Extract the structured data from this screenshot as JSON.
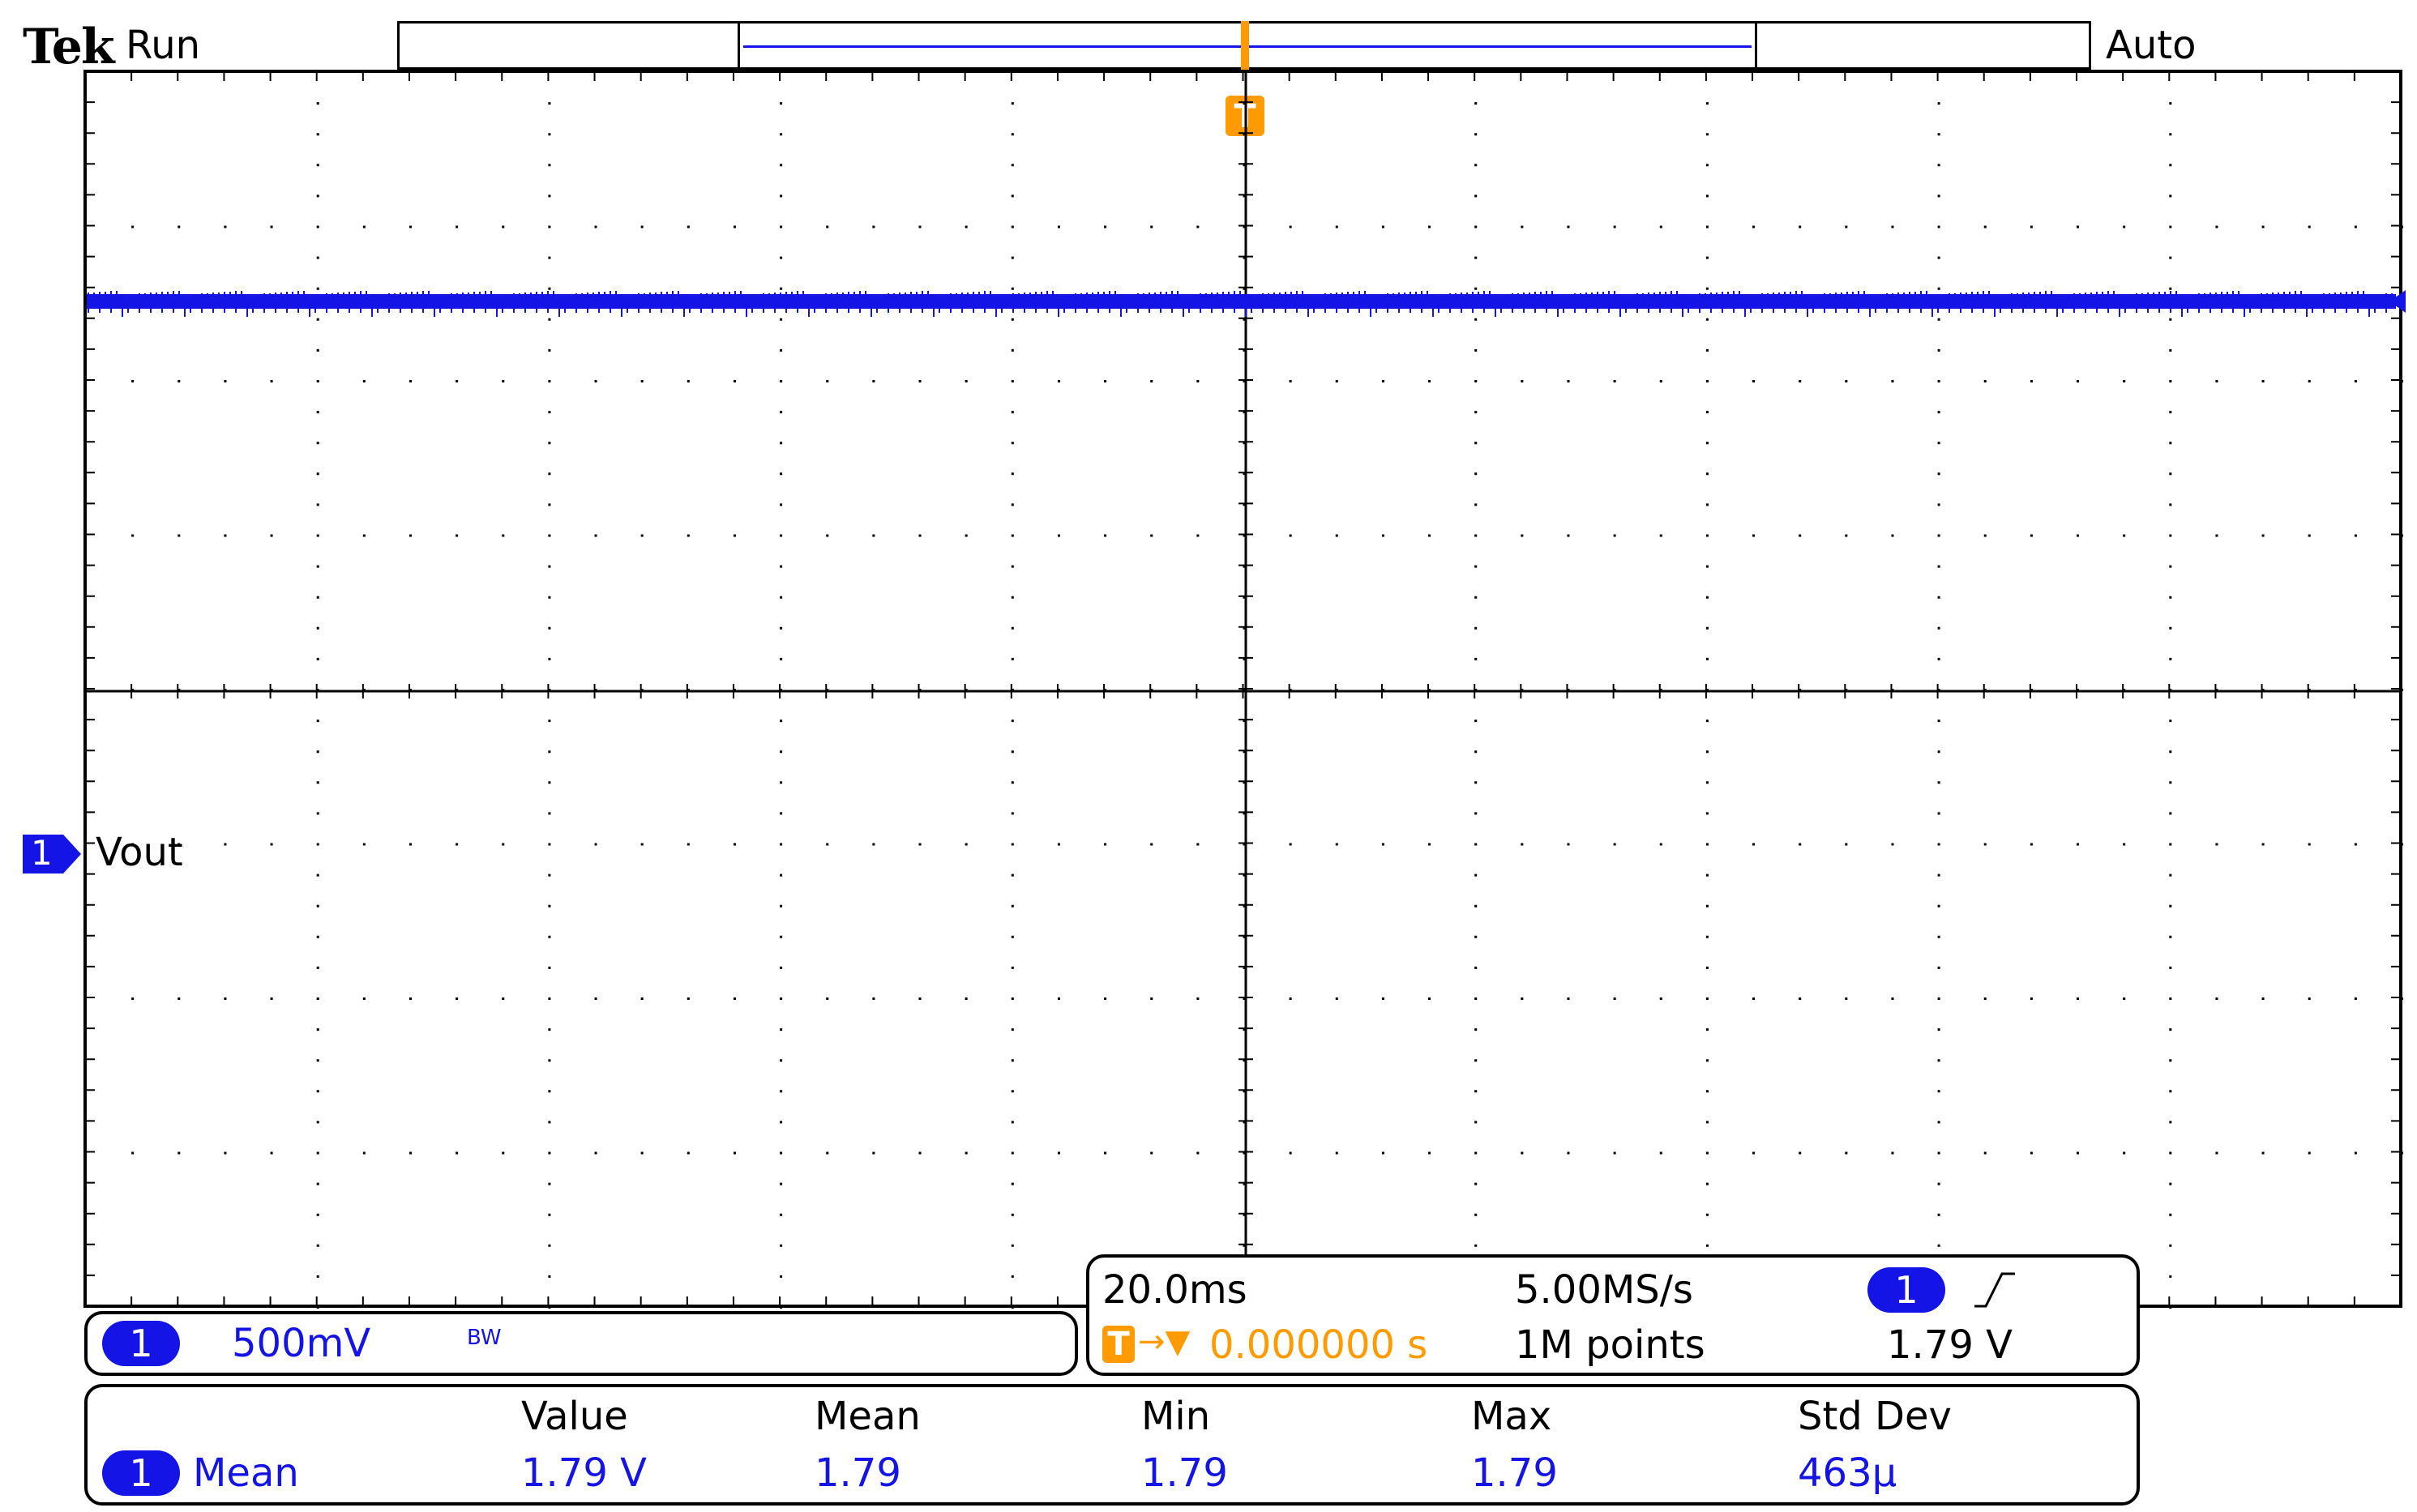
{
  "header": {
    "brand": "Tek",
    "status": "Run",
    "trigger_mode": "Auto"
  },
  "channel1": {
    "number": "1",
    "label": "Vout",
    "color": "#1414e6",
    "level_v": 1.79
  },
  "trigger": {
    "marker": "T",
    "color": "#ff9a00"
  },
  "vertical": {
    "channel": "1",
    "scale": "500mV",
    "bandwidth": "BW"
  },
  "timebase": {
    "scale": "20.0ms",
    "sample_rate": "5.00MS/s",
    "delay_icon": "T",
    "delay_arrow": "→▼",
    "delay": "0.000000 s",
    "record_length": "1M points",
    "trig_source": "1",
    "trig_slope_icon": "rising-edge-icon",
    "trig_level": "1.79 V"
  },
  "measurements": {
    "headers": [
      "Value",
      "Mean",
      "Min",
      "Max",
      "Std Dev"
    ],
    "rows": [
      {
        "channel": "1",
        "name": "Mean",
        "values": [
          "1.79 V",
          "1.79",
          "1.79",
          "1.79",
          "463µ"
        ]
      }
    ]
  }
}
